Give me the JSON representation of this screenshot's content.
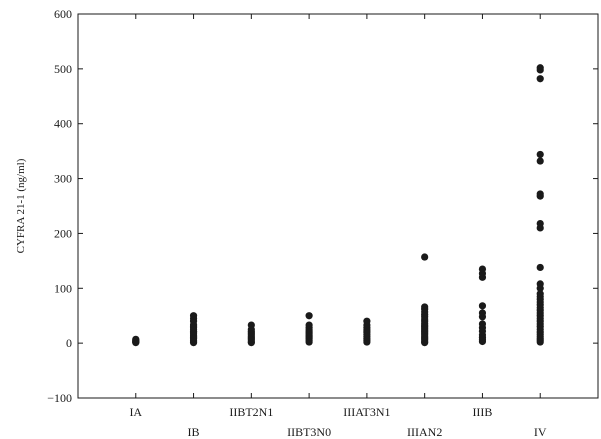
{
  "chart_data": {
    "type": "scatter",
    "title": "",
    "xlabel": "",
    "ylabel": "CYFRA 21-1 (ng/ml)",
    "ylim": [
      -100,
      600
    ],
    "yticks": [
      "600",
      "500",
      "400",
      "300",
      "200",
      "100",
      "0",
      "−100"
    ],
    "ytick_values": [
      600,
      500,
      400,
      300,
      200,
      100,
      0,
      -100
    ],
    "grid": false,
    "legend": "none",
    "point_color": "#1a1a1a",
    "categories": [
      "IA",
      "IB",
      "IIBT2N1",
      "IIBT3N0",
      "IIIAT3N1",
      "IIIAN2",
      "IIIB",
      "IV"
    ],
    "series": [
      {
        "values": [
          [
            2,
            3,
            5,
            7,
            1,
            4
          ],
          [
            1,
            3,
            5,
            8,
            10,
            12,
            14,
            17,
            20,
            22,
            25,
            28,
            31,
            34,
            40,
            45,
            50
          ],
          [
            1,
            3,
            6,
            9,
            12,
            15,
            18,
            21,
            25,
            33
          ],
          [
            2,
            5,
            8,
            11,
            14,
            17,
            20,
            24,
            28,
            33,
            50
          ],
          [
            2,
            5,
            8,
            12,
            16,
            20,
            24,
            28,
            33,
            40
          ],
          [
            1,
            3,
            6,
            9,
            12,
            15,
            18,
            21,
            24,
            27,
            30,
            33,
            36,
            40,
            44,
            48,
            52,
            57,
            62,
            66,
            157
          ],
          [
            3,
            6,
            10,
            15,
            22,
            28,
            35,
            48,
            55,
            68,
            120,
            127,
            135
          ],
          [
            2,
            5,
            8,
            12,
            16,
            20,
            25,
            30,
            35,
            40,
            45,
            50,
            55,
            60,
            65,
            70,
            75,
            80,
            85,
            90,
            100,
            108,
            138,
            210,
            218,
            268,
            272,
            332,
            344,
            482,
            498,
            502
          ]
        ]
      }
    ]
  }
}
